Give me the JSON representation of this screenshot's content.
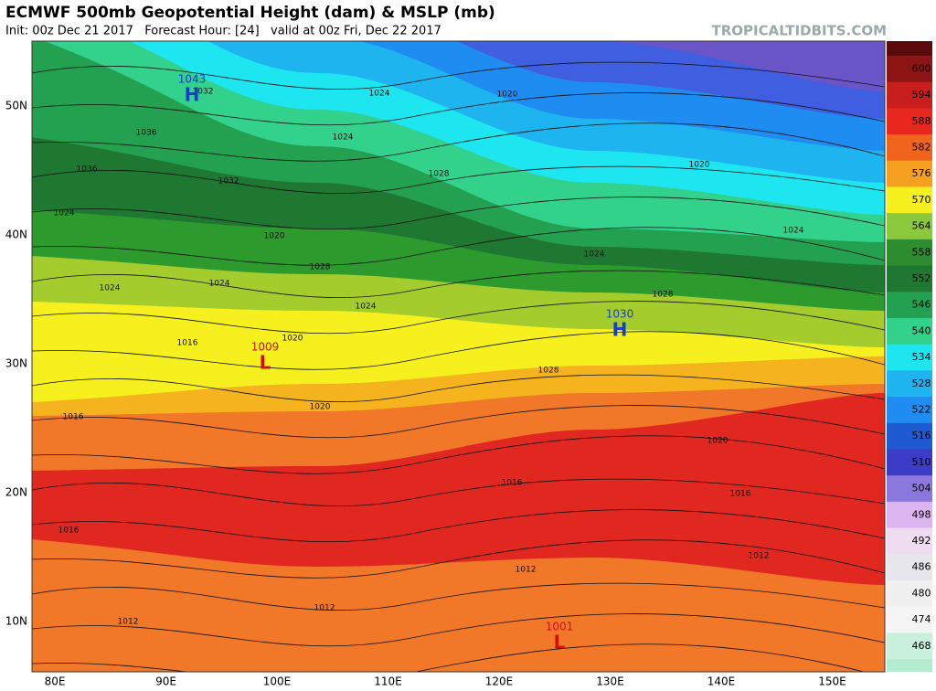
{
  "header": {
    "title": "ECMWF 500mb Geopotential Height (dam) & MSLP (mb)",
    "subtitle": "Init: 00z Dec 21 2017   Forecast Hour: [24]   valid at 00z Fri, Dec 22 2017",
    "site": "TROPICALTIDBITS.COM"
  },
  "map": {
    "lat_labels": [
      "50N",
      "40N",
      "30N",
      "20N",
      "10N"
    ],
    "lon_labels": [
      "80E",
      "90E",
      "100E",
      "110E",
      "120E",
      "130E",
      "140E",
      "150E"
    ],
    "contour_labels": [
      "1036",
      "1024",
      "1032",
      "1024",
      "1036",
      "1028",
      "1032",
      "1024",
      "1020",
      "1024",
      "1028",
      "1024",
      "1016",
      "1020",
      "1024",
      "1016",
      "1020",
      "1028",
      "1024",
      "1028",
      "1020",
      "1016",
      "1012",
      "1016",
      "1012",
      "1012",
      "1012",
      "1020",
      "1016",
      "1024",
      "1020"
    ],
    "pressure_centers": [
      {
        "symbol": "H",
        "value": "1043",
        "color": "#1a3cc8"
      },
      {
        "symbol": "H",
        "value": "1030",
        "color": "#1a3cc8"
      },
      {
        "symbol": "L",
        "value": "1009",
        "color": "#d01010"
      },
      {
        "symbol": "L",
        "value": "1001",
        "color": "#d01010"
      }
    ]
  },
  "colorbar": {
    "labels": [
      "600",
      "594",
      "588",
      "582",
      "576",
      "570",
      "564",
      "558",
      "552",
      "546",
      "540",
      "534",
      "528",
      "522",
      "516",
      "510",
      "504",
      "498",
      "492",
      "486",
      "480",
      "474",
      "468"
    ],
    "colors": [
      "#8c1414",
      "#c81e1e",
      "#e8281e",
      "#f0641e",
      "#f5a01e",
      "#f5f01e",
      "#8cc83c",
      "#2d8c2d",
      "#1e7832",
      "#23a050",
      "#32d28c",
      "#1ee6f0",
      "#1eb4f0",
      "#1e8cf0",
      "#1e5ad2",
      "#3c3cc8",
      "#8c78dc",
      "#dcb4f0",
      "#f0dcf0",
      "#e6e6ec",
      "#f0f0f0",
      "#f5f5f5",
      "#c8f0dc"
    ]
  }
}
